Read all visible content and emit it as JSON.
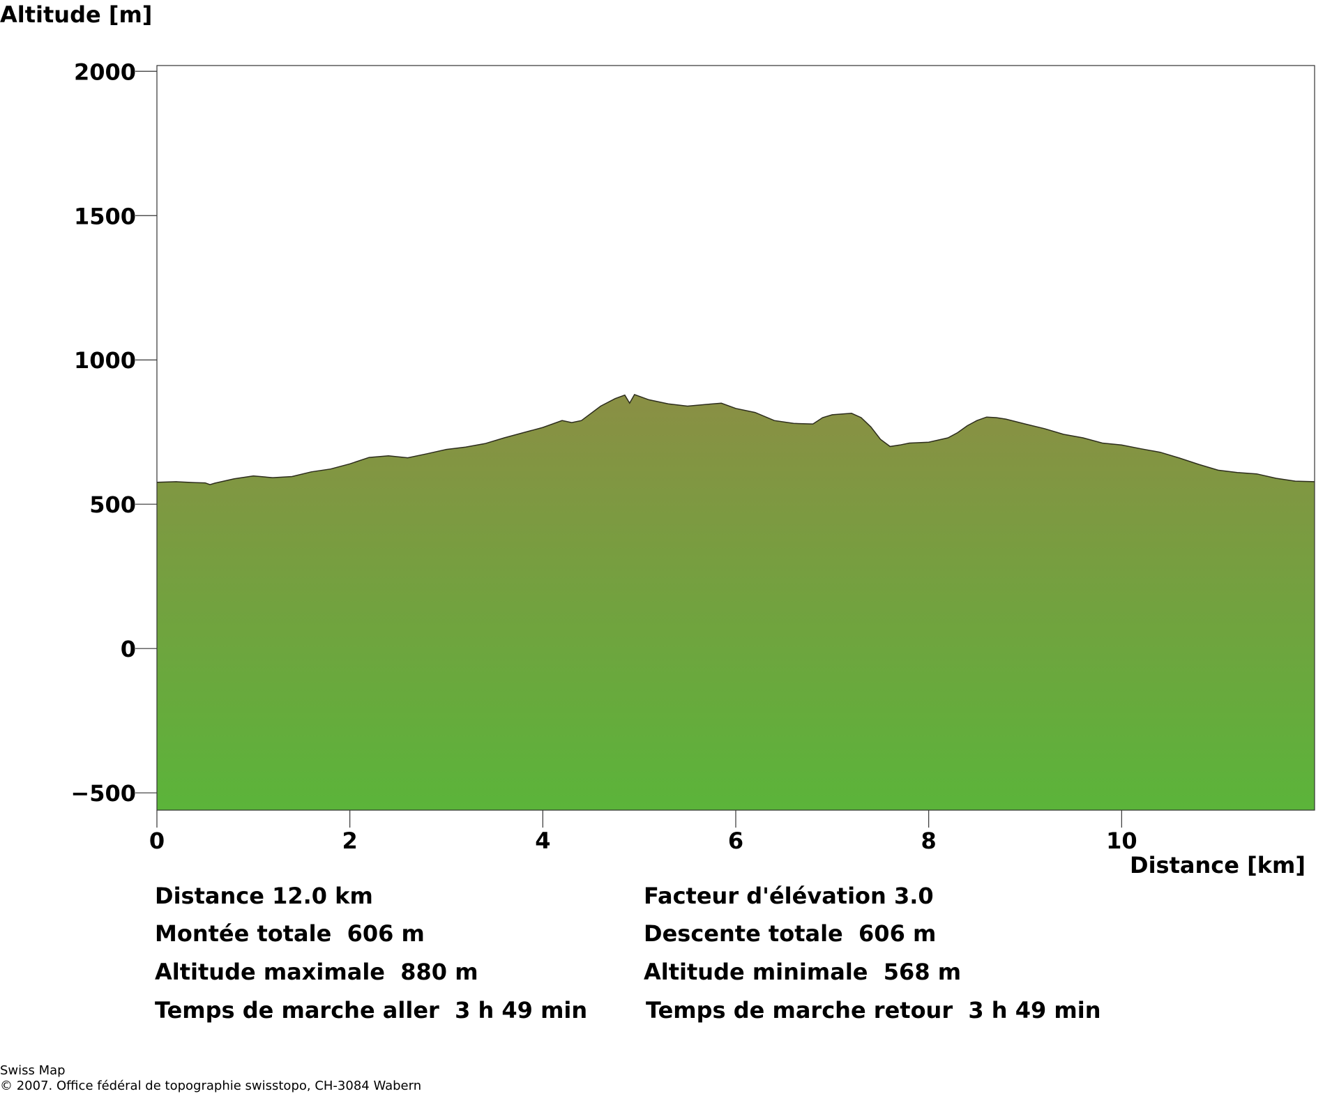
{
  "chart_data": {
    "type": "area",
    "xlabel": "Distance [km]",
    "ylabel": "Altitude [m]",
    "xlim": [
      0,
      12.0
    ],
    "ylim": [
      -560,
      2020
    ],
    "xticks": [
      0,
      2,
      4,
      6,
      8,
      10
    ],
    "yticks": [
      2000,
      1500,
      1000,
      500,
      0,
      -500
    ],
    "grid": false,
    "fill_colors": {
      "top": "#8a8f44",
      "bottom": "#5bb43a"
    },
    "x": [
      0.0,
      0.2,
      0.4,
      0.5,
      0.55,
      0.6,
      0.8,
      1.0,
      1.2,
      1.4,
      1.6,
      1.8,
      2.0,
      2.2,
      2.4,
      2.6,
      2.8,
      3.0,
      3.2,
      3.4,
      3.6,
      3.8,
      4.0,
      4.2,
      4.3,
      4.4,
      4.6,
      4.75,
      4.85,
      4.9,
      4.95,
      5.1,
      5.3,
      5.5,
      5.7,
      5.85,
      6.0,
      6.2,
      6.4,
      6.6,
      6.8,
      6.9,
      7.0,
      7.2,
      7.3,
      7.4,
      7.5,
      7.6,
      7.7,
      7.8,
      8.0,
      8.2,
      8.3,
      8.4,
      8.5,
      8.6,
      8.7,
      8.8,
      9.0,
      9.2,
      9.4,
      9.6,
      9.8,
      10.0,
      10.2,
      10.4,
      10.6,
      10.8,
      11.0,
      11.2,
      11.4,
      11.6,
      11.8,
      12.0
    ],
    "y": [
      576,
      578,
      575,
      574,
      568,
      573,
      588,
      598,
      592,
      596,
      612,
      622,
      640,
      662,
      668,
      661,
      675,
      690,
      698,
      710,
      730,
      748,
      766,
      790,
      783,
      790,
      840,
      866,
      878,
      850,
      880,
      862,
      848,
      840,
      846,
      850,
      832,
      818,
      790,
      780,
      778,
      800,
      810,
      815,
      800,
      768,
      725,
      700,
      705,
      712,
      715,
      730,
      748,
      772,
      790,
      802,
      800,
      795,
      778,
      762,
      742,
      730,
      712,
      705,
      692,
      680,
      660,
      638,
      618,
      610,
      605,
      590,
      580,
      578
    ]
  },
  "labels": {
    "ylabel": "Altitude [m]",
    "xlabel": "Distance [km]"
  },
  "stats": {
    "distance": "Distance 12.0 km",
    "elevation_factor": "Facteur d'élévation 3.0",
    "total_ascent": "Montée totale  606 m",
    "total_descent": "Descente totale  606 m",
    "max_altitude": "Altitude maximale  880 m",
    "min_altitude": "Altitude minimale  568 m",
    "walk_time_out": "Temps de marche aller  3 h 49 min",
    "walk_time_back": "Temps de marche retour  3 h 49 min"
  },
  "credits": {
    "line1": "Swiss Map",
    "line2": "© 2007. Office fédéral de topographie swisstopo, CH-3084 Wabern"
  }
}
